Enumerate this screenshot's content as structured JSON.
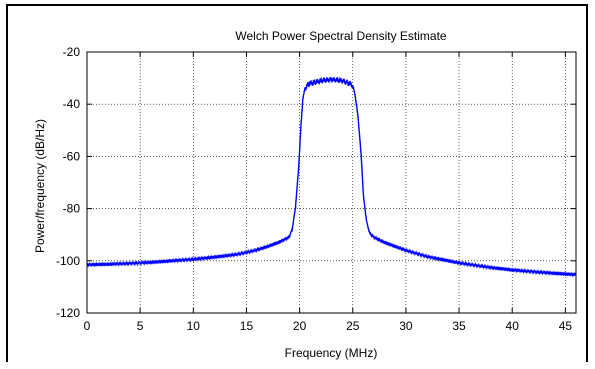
{
  "colors": {
    "series": "#0000ff",
    "grid": "#000000",
    "background": "#ffffff"
  },
  "chart_data": {
    "type": "line",
    "title": "Welch Power Spectral Density Estimate",
    "xlabel": "Frequency (MHz)",
    "ylabel": "Power/frequency (dB/Hz)",
    "xlim": [
      0,
      46
    ],
    "ylim": [
      -120,
      -20
    ],
    "xticks": [
      0,
      5,
      10,
      15,
      20,
      25,
      30,
      35,
      40,
      45
    ],
    "yticks": [
      -120,
      -100,
      -80,
      -60,
      -40,
      -20
    ],
    "grid": true,
    "series": [
      {
        "x": [
          0,
          2,
          4,
          6,
          8,
          10,
          12,
          14,
          15,
          16,
          17,
          18,
          19,
          19.3,
          19.6,
          19.9,
          20.1,
          20.3,
          20.5,
          20.8,
          21,
          22,
          23,
          24,
          24.7,
          25,
          25.2,
          25.5,
          25.8,
          26,
          26.3,
          26.6,
          27,
          28,
          30,
          32,
          35,
          38,
          40,
          42,
          44,
          46
        ],
        "y": [
          -101.5,
          -101.3,
          -101,
          -100.6,
          -100,
          -99.4,
          -98.6,
          -97.6,
          -96.8,
          -95.8,
          -94.5,
          -93,
          -91,
          -88,
          -80,
          -65,
          -50,
          -38,
          -34,
          -32.5,
          -32,
          -31,
          -30.5,
          -31,
          -32,
          -33,
          -36,
          -45,
          -60,
          -75,
          -85,
          -89.5,
          -91,
          -93,
          -96,
          -98.4,
          -100.8,
          -102.6,
          -103.5,
          -104.2,
          -104.8,
          -105.3
        ]
      }
    ]
  }
}
